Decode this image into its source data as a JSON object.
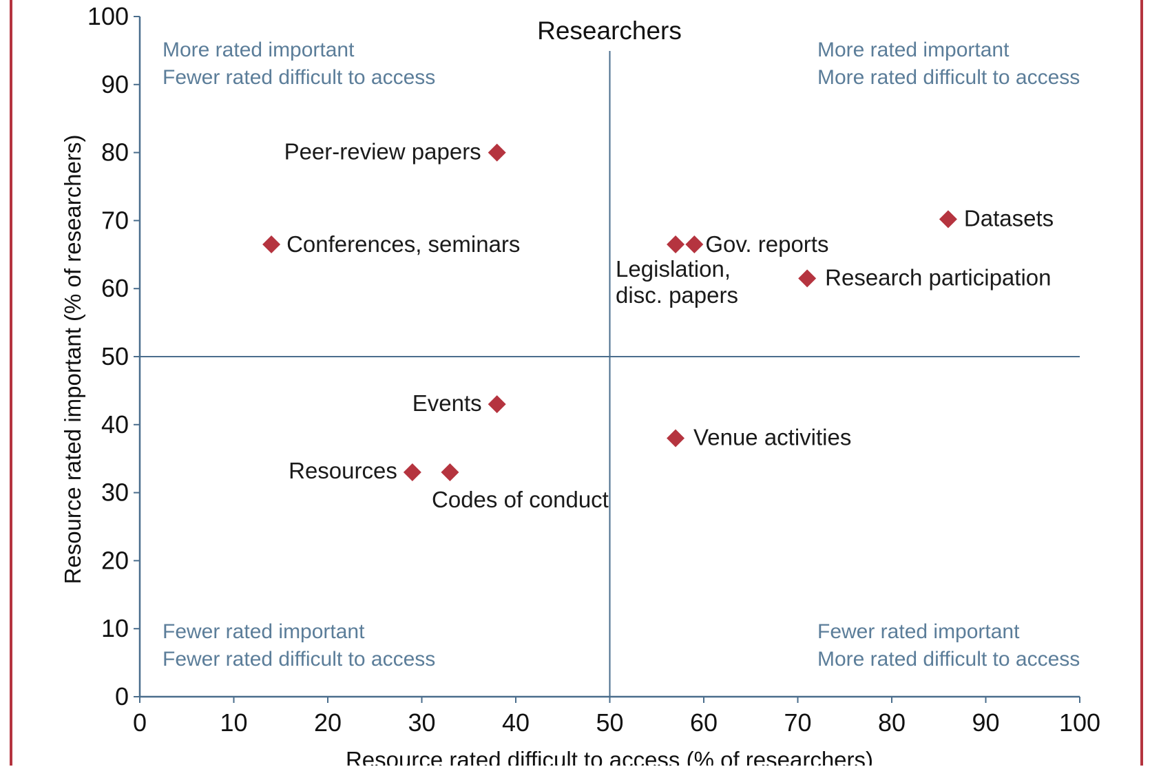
{
  "chart_data": {
    "type": "scatter",
    "title": "Researchers",
    "xlabel": "Resource rated difficult to access (% of researchers)",
    "ylabel": "Resource rated important (% of researchers)",
    "xlim": [
      0,
      100
    ],
    "ylim": [
      0,
      100
    ],
    "xticks": [
      0,
      10,
      20,
      30,
      40,
      50,
      60,
      70,
      80,
      90,
      100
    ],
    "yticks": [
      0,
      10,
      20,
      30,
      40,
      50,
      60,
      70,
      80,
      90,
      100
    ],
    "reference_lines": {
      "x": 50,
      "y": 50
    },
    "grid": false,
    "marker": "diamond",
    "colors": {
      "marker": "#b5343f",
      "border": "#b5343f",
      "axis": "#4a6d8c",
      "quadrant_text": "#5b7d99",
      "label_text": "#1a1a1a"
    },
    "points": [
      {
        "label": "Peer-review papers",
        "x": 38,
        "y": 80
      },
      {
        "label": "Conferences, seminars",
        "x": 14,
        "y": 66.5
      },
      {
        "label": "Events",
        "x": 38,
        "y": 43
      },
      {
        "label": "Resources",
        "x": 29,
        "y": 33
      },
      {
        "label": "Codes of conduct",
        "x": 33,
        "y": 33
      },
      {
        "label": "Legislation, disc. papers",
        "x": 57,
        "y": 66.5
      },
      {
        "label": "Gov. reports",
        "x": 59,
        "y": 66.5
      },
      {
        "label": "Datasets",
        "x": 86,
        "y": 70.2
      },
      {
        "label": "Research participation",
        "x": 71,
        "y": 61.5
      },
      {
        "label": "Venue activities",
        "x": 57,
        "y": 38
      }
    ],
    "quadrant_notes": [
      {
        "position": "top-left",
        "lines": [
          "More rated important",
          "Fewer rated difficult to access"
        ]
      },
      {
        "position": "top-right",
        "lines": [
          "More rated important",
          "More rated difficult to access"
        ]
      },
      {
        "position": "bottom-left",
        "lines": [
          "Fewer rated important",
          "Fewer rated difficult to access"
        ]
      },
      {
        "position": "bottom-right",
        "lines": [
          "Fewer rated important",
          "More rated difficult to access"
        ]
      }
    ]
  }
}
